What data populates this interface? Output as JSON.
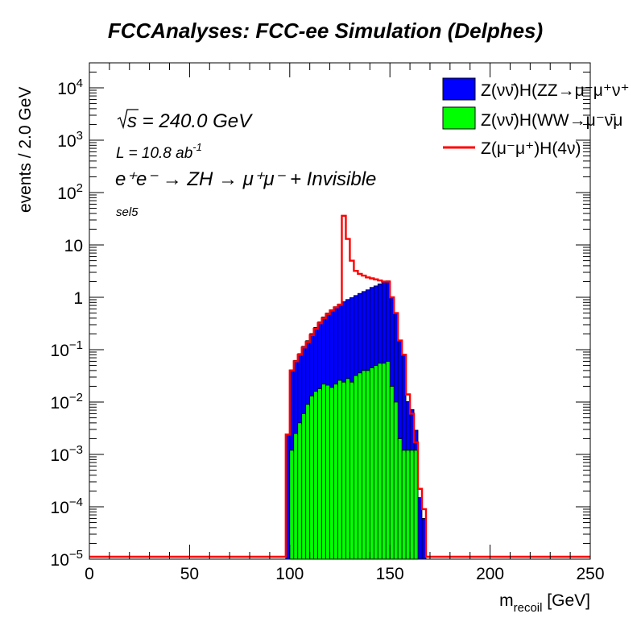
{
  "chart_data": {
    "type": "histogram",
    "title": "FCCAnalyses: FCC-ee Simulation (Delphes)",
    "xlabel_main": "m",
    "xlabel_sub": "recoil",
    "xlabel_unit": " [GeV]",
    "ylabel": "events / 2.0 GeV",
    "xlim": [
      0,
      250
    ],
    "ylim": [
      1e-05,
      30000
    ],
    "log_y": true,
    "bin_width": 2,
    "x_ticks": [
      "0",
      "50",
      "100",
      "150",
      "200",
      "250"
    ],
    "y_ticks": [
      {
        "base": "10",
        "exp": "4",
        "plain": ""
      },
      {
        "base": "10",
        "exp": "3",
        "plain": ""
      },
      {
        "base": "10",
        "exp": "2",
        "plain": ""
      },
      {
        "base": "",
        "exp": "",
        "plain": "10"
      },
      {
        "base": "",
        "exp": "",
        "plain": "1"
      },
      {
        "base": "10",
        "exp": "−1",
        "plain": ""
      },
      {
        "base": "10",
        "exp": "−2",
        "plain": ""
      },
      {
        "base": "10",
        "exp": "−3",
        "plain": ""
      },
      {
        "base": "10",
        "exp": "−4",
        "plain": ""
      },
      {
        "base": "10",
        "exp": "−5",
        "plain": ""
      }
    ],
    "annotations": {
      "sqrt_s": "s = 240.0 GeV",
      "lumi": "L = 10.8 ab",
      "lumi_exp": "-1",
      "process": "e⁺e⁻ → ZH → μ⁺μ⁻ + Invisible",
      "selection": "sel5"
    },
    "series": [
      {
        "name": "Z(νν̄)H(ZZ→μ⁻μ⁺ν⁺",
        "style": "stacked-fill",
        "color": "#0000ff",
        "bin_edges_start": 98,
        "values": [
          0.0024,
          0.04,
          0.06,
          0.08,
          0.11,
          0.14,
          0.19,
          0.25,
          0.32,
          0.4,
          0.48,
          0.56,
          0.64,
          0.72,
          0.8,
          0.88,
          0.96,
          1.05,
          1.15,
          1.25,
          1.35,
          1.5,
          1.6,
          1.75,
          1.9,
          2.0,
          1.0,
          0.5,
          0.15,
          0.08,
          0.009,
          0.006,
          0.0017,
          0.00015,
          6e-05,
          1e-05,
          1e-05,
          1e-05
        ]
      },
      {
        "name": "Z(νν̄)H(WW→μ⁻ν̄μ",
        "style": "stacked-fill",
        "color": "#00ff00",
        "bin_edges_start": 98,
        "values": [
          1e-05,
          0.0012,
          0.0025,
          0.004,
          0.006,
          0.009,
          0.013,
          0.016,
          0.018,
          0.022,
          0.021,
          0.019,
          0.022,
          0.026,
          0.024,
          0.028,
          0.024,
          0.032,
          0.036,
          0.04,
          0.04,
          0.045,
          0.05,
          0.055,
          0.055,
          0.06,
          0.02,
          0.01,
          0.002,
          0.0012,
          0.0012,
          0.0012,
          0.0012,
          0.0,
          0.0,
          0.0,
          0.0,
          0.0
        ]
      },
      {
        "name": "Z(μ⁻μ⁺)H(4ν)",
        "style": "line",
        "color": "#ff0000",
        "bin_edges_start": 98,
        "values": [
          0.0024,
          0.04,
          0.06,
          0.08,
          0.11,
          0.14,
          0.19,
          0.25,
          0.32,
          0.4,
          0.48,
          0.56,
          0.64,
          0.72,
          36.0,
          13.0,
          5.0,
          3.2,
          2.8,
          2.6,
          2.4,
          2.3,
          2.2,
          2.1,
          2.0,
          2.0,
          1.0,
          0.5,
          0.15,
          0.08,
          0.014,
          0.006,
          0.0017,
          0.00022,
          9e-05,
          1e-05,
          1e-05,
          1e-05
        ]
      }
    ],
    "legend_position": "top-right"
  }
}
